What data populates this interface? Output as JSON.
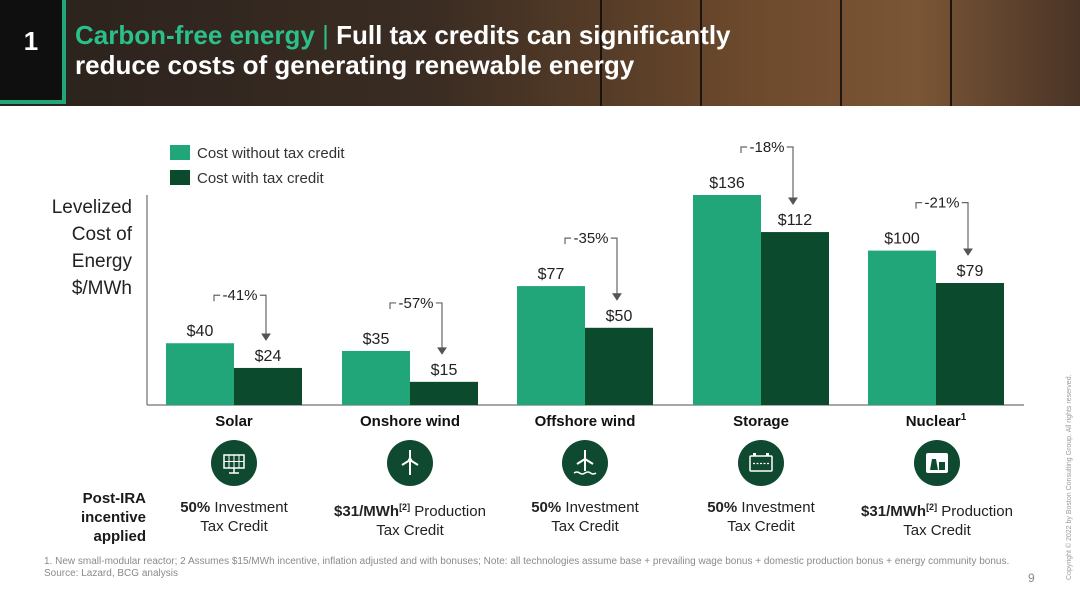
{
  "header": {
    "section_number": "1",
    "title_accent": "Carbon-free energy",
    "title_separator": "|",
    "title_main": "Full tax credits can significantly reduce costs of generating renewable energy"
  },
  "chart_data": {
    "type": "bar",
    "ylabel_lines": [
      "Levelized",
      "Cost of",
      "Energy",
      "$/MWh"
    ],
    "categories": [
      "Solar",
      "Onshore wind",
      "Offshore wind",
      "Storage",
      "Nuclear"
    ],
    "category_superscripts": [
      "",
      "",
      "",
      "",
      "1"
    ],
    "series": [
      {
        "name": "Cost without tax credit",
        "values": [
          40,
          35,
          77,
          136,
          100
        ],
        "color": "#21a67a"
      },
      {
        "name": "Cost with tax credit",
        "values": [
          24,
          15,
          50,
          112,
          79
        ],
        "color": "#0c4a2e"
      }
    ],
    "value_labels": [
      [
        "$40",
        "$35",
        "$77",
        "$136",
        "$100"
      ],
      [
        "$24",
        "$15",
        "$50",
        "$112",
        "$79"
      ]
    ],
    "change_labels": [
      "-41%",
      "-57%",
      "-35%",
      "-18%",
      "-21%"
    ],
    "ylim": [
      0,
      136
    ],
    "legend_position": "top-left",
    "grid": false
  },
  "incentives": {
    "label": "Post-IRA incentive applied",
    "items": [
      {
        "bold": "50%",
        "sup": "",
        "rest": " Investment",
        "line2": "Tax Credit",
        "icon": "solar-panel-icon"
      },
      {
        "bold": "$31/MWh",
        "sup": "[2]",
        "rest": " Production",
        "line2": "Tax Credit",
        "icon": "wind-turbine-icon"
      },
      {
        "bold": "50%",
        "sup": "",
        "rest": " Investment",
        "line2": "Tax Credit",
        "icon": "offshore-wind-icon"
      },
      {
        "bold": "50%",
        "sup": "",
        "rest": " Investment",
        "line2": "Tax Credit",
        "icon": "battery-icon"
      },
      {
        "bold": "$31/MWh",
        "sup": "[2]",
        "rest": " Production",
        "line2": "Tax Credit",
        "icon": "nuclear-plant-icon"
      }
    ]
  },
  "footnote": "1. New small-modular reactor; 2 Assumes $15/MWh incentive, inflation adjusted and with bonuses; Note: all technologies assume base + prevailing wage bonus + domestic production bonus + energy community bonus. Source: Lazard, BCG analysis",
  "page_number": "9",
  "copyright": "Copyright © 2022 by Boston Consulting Group. All rights reserved.",
  "colors": {
    "accent": "#21a67a",
    "dark_green": "#0c4a2e",
    "icon_bg": "#0f4a30"
  }
}
